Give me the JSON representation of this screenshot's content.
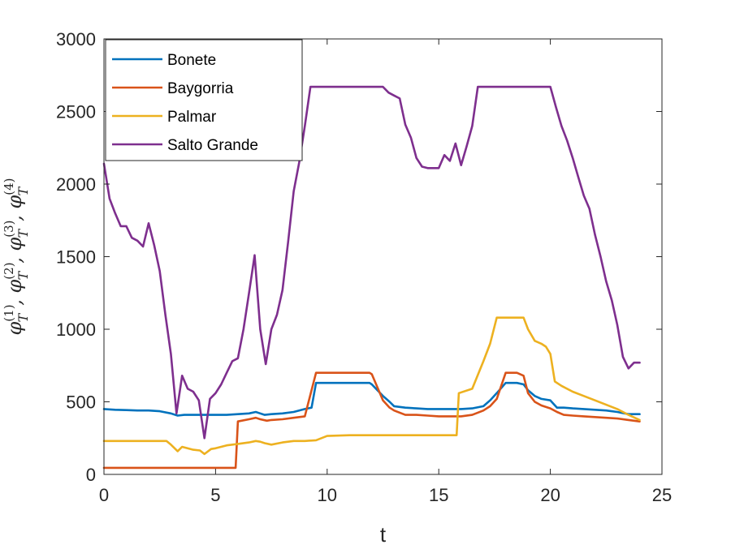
{
  "chart_data": {
    "type": "line",
    "title": "",
    "xlabel": "t",
    "ylabel": "φ_T^(1), φ_T^(2), φ_T^(3), φ_T^(4)",
    "ylabel_parts": [
      {
        "base": "φ",
        "sub": "T",
        "sup": "(1)"
      },
      {
        "base": "φ",
        "sub": "T",
        "sup": "(2)"
      },
      {
        "base": "φ",
        "sub": "T",
        "sup": "(3)"
      },
      {
        "base": "φ",
        "sub": "T",
        "sup": "(4)"
      }
    ],
    "xlim": [
      0,
      25
    ],
    "ylim": [
      0,
      3000
    ],
    "xticks": [
      0,
      5,
      10,
      15,
      20,
      25
    ],
    "yticks": [
      0,
      500,
      1000,
      1500,
      2000,
      2500,
      3000
    ],
    "grid": false,
    "legend_position": "top-left",
    "series": [
      {
        "name": "Bonete",
        "color": "#0072BD",
        "x": [
          0,
          0.5,
          1,
          1.5,
          2,
          2.5,
          3,
          3.3,
          3.6,
          4,
          4.5,
          5,
          5.5,
          6,
          6.5,
          6.8,
          7,
          7.2,
          7.5,
          8,
          8.5,
          9,
          9.3,
          9.5,
          10,
          10.5,
          11,
          11.5,
          11.9,
          12,
          12.5,
          12.8,
          13,
          13.5,
          14,
          14.5,
          15,
          15.5,
          16,
          16.5,
          17,
          17.3,
          17.6,
          18,
          18.5,
          18.8,
          19,
          19.3,
          19.6,
          20,
          20.3,
          20.6,
          21,
          21.5,
          22,
          22.5,
          23,
          23.5,
          24
        ],
        "y": [
          450,
          445,
          443,
          440,
          440,
          435,
          420,
          405,
          410,
          410,
          410,
          410,
          410,
          415,
          420,
          430,
          420,
          410,
          415,
          420,
          430,
          450,
          460,
          630,
          630,
          630,
          630,
          630,
          630,
          620,
          540,
          500,
          470,
          460,
          455,
          450,
          450,
          450,
          450,
          455,
          470,
          510,
          560,
          630,
          630,
          620,
          580,
          540,
          520,
          510,
          460,
          460,
          455,
          450,
          445,
          440,
          430,
          415,
          415
        ]
      },
      {
        "name": "Baygorria",
        "color": "#D95319",
        "x": [
          0,
          1,
          2,
          3,
          4,
          5,
          5.8,
          5.9,
          6,
          6.5,
          6.8,
          7,
          7.3,
          7.5,
          8,
          8.5,
          9,
          9.5,
          10,
          11,
          11.5,
          11.9,
          12,
          12.5,
          12.8,
          13,
          13.5,
          14,
          14.5,
          15,
          15.5,
          16,
          16.5,
          17,
          17.3,
          17.6,
          18,
          18.5,
          18.8,
          19,
          19.3,
          19.6,
          20,
          20.3,
          20.6,
          21,
          21.5,
          22,
          22.5,
          23,
          23.5,
          24
        ],
        "y": [
          45,
          45,
          45,
          45,
          45,
          45,
          45,
          45,
          365,
          380,
          390,
          380,
          370,
          375,
          380,
          390,
          400,
          700,
          700,
          700,
          700,
          700,
          690,
          510,
          460,
          440,
          410,
          410,
          405,
          400,
          400,
          400,
          410,
          440,
          470,
          520,
          700,
          700,
          680,
          560,
          500,
          475,
          455,
          430,
          410,
          405,
          400,
          395,
          390,
          385,
          375,
          365
        ]
      },
      {
        "name": "Palmar",
        "color": "#EDB120",
        "x": [
          0,
          1,
          2,
          2.8,
          3,
          3.3,
          3.5,
          4,
          4.3,
          4.5,
          4.8,
          5,
          5.5,
          6,
          6.5,
          6.8,
          7,
          7.2,
          7.5,
          8,
          8.5,
          9,
          9.5,
          10,
          11,
          12,
          13,
          14,
          15,
          15.8,
          15.9,
          16.5,
          17,
          17.3,
          17.6,
          18,
          18.5,
          18.8,
          19,
          19.3,
          19.6,
          19.8,
          20,
          20.2,
          20.5,
          21,
          21.5,
          22,
          22.5,
          23,
          23.5,
          24
        ],
        "y": [
          230,
          230,
          230,
          230,
          205,
          160,
          190,
          170,
          165,
          140,
          175,
          180,
          200,
          210,
          220,
          230,
          225,
          215,
          205,
          220,
          230,
          230,
          235,
          265,
          270,
          270,
          270,
          270,
          270,
          270,
          560,
          590,
          780,
          900,
          1080,
          1080,
          1080,
          1080,
          1000,
          920,
          900,
          880,
          830,
          640,
          610,
          570,
          540,
          510,
          480,
          450,
          410,
          375
        ]
      },
      {
        "name": "Salto Grande",
        "color": "#7E2F8E",
        "x": [
          0,
          0.25,
          0.5,
          0.75,
          1,
          1.25,
          1.5,
          1.75,
          2,
          2.25,
          2.5,
          2.75,
          3,
          3.25,
          3.5,
          3.75,
          4,
          4.25,
          4.5,
          4.75,
          5,
          5.25,
          5.5,
          5.75,
          6,
          6.25,
          6.5,
          6.75,
          7,
          7.25,
          7.5,
          7.75,
          8,
          8.25,
          8.5,
          8.75,
          9,
          9.25,
          9.5,
          9.75,
          10,
          11,
          12,
          12.5,
          12.75,
          13,
          13.25,
          13.5,
          13.75,
          14,
          14.25,
          14.5,
          14.75,
          15,
          15.25,
          15.5,
          15.75,
          16,
          16.25,
          16.5,
          16.75,
          17,
          18,
          19,
          20,
          20.25,
          20.5,
          20.75,
          21,
          21.25,
          21.5,
          21.75,
          22,
          22.25,
          22.5,
          22.75,
          23,
          23.25,
          23.5,
          23.75,
          24
        ],
        "y": [
          2140,
          1900,
          1800,
          1710,
          1710,
          1630,
          1610,
          1570,
          1730,
          1580,
          1400,
          1100,
          830,
          420,
          680,
          590,
          570,
          510,
          250,
          520,
          560,
          620,
          700,
          780,
          800,
          1000,
          1250,
          1510,
          1000,
          760,
          1000,
          1100,
          1270,
          1600,
          1950,
          2150,
          2400,
          2670,
          2670,
          2670,
          2670,
          2670,
          2670,
          2670,
          2630,
          2610,
          2590,
          2410,
          2320,
          2180,
          2120,
          2110,
          2110,
          2110,
          2200,
          2160,
          2280,
          2130,
          2260,
          2400,
          2670,
          2670,
          2670,
          2670,
          2670,
          2530,
          2400,
          2300,
          2180,
          2050,
          1920,
          1830,
          1650,
          1500,
          1330,
          1200,
          1030,
          810,
          730,
          770,
          770
        ]
      }
    ]
  }
}
